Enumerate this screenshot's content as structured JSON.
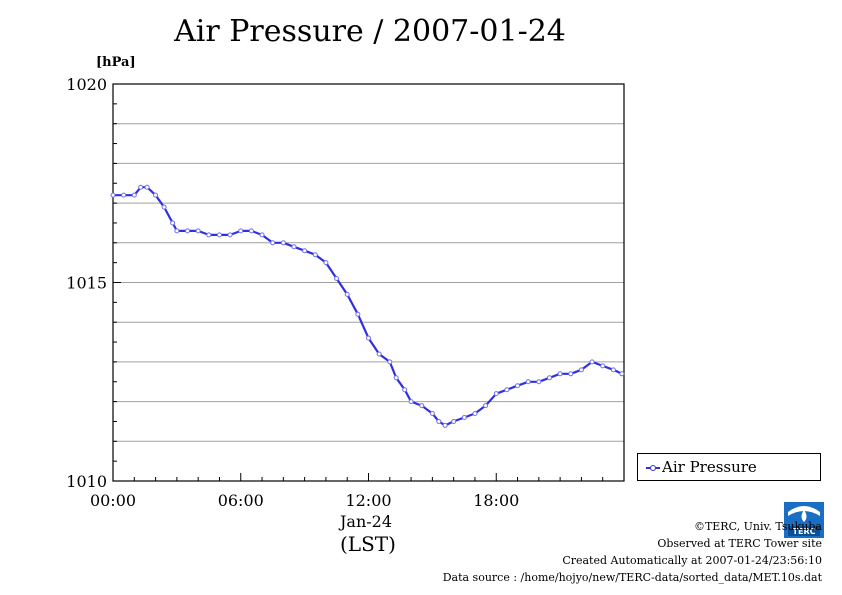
{
  "chart_data": {
    "type": "line",
    "title": "Air Pressure / 2007-01-24",
    "ylabel": "[hPa]",
    "xlabel": "Jan-24",
    "xlabel2": "(LST)",
    "ylim": [
      1010,
      1020
    ],
    "xlim": [
      0,
      24
    ],
    "y_ticks": [
      "1010",
      "1015",
      "1020"
    ],
    "x_ticks": [
      "00:00",
      "06:00",
      "12:00",
      "18:00"
    ],
    "grid": true,
    "legend_position": "right",
    "series": [
      {
        "name": "Air Pressure",
        "color": "#3030e0",
        "x": [
          0,
          0.5,
          1,
          1.3,
          1.6,
          2,
          2.4,
          2.8,
          3,
          3.5,
          4,
          4.5,
          5,
          5.5,
          6,
          6.5,
          7,
          7.5,
          8,
          8.5,
          9,
          9.5,
          10,
          10.5,
          11,
          11.5,
          12,
          12.5,
          13,
          13.3,
          13.7,
          14,
          14.5,
          15,
          15.3,
          15.6,
          16,
          16.5,
          17,
          17.5,
          18,
          18.5,
          19,
          19.5,
          20,
          20.5,
          21,
          21.5,
          22,
          22.5,
          23,
          23.5,
          23.9
        ],
        "y": [
          1017.2,
          1017.2,
          1017.2,
          1017.4,
          1017.4,
          1017.2,
          1016.9,
          1016.5,
          1016.3,
          1016.3,
          1016.3,
          1016.2,
          1016.2,
          1016.2,
          1016.3,
          1016.3,
          1016.2,
          1016.0,
          1016.0,
          1015.9,
          1015.8,
          1015.7,
          1015.5,
          1015.1,
          1014.7,
          1014.2,
          1013.6,
          1013.2,
          1013.0,
          1012.6,
          1012.3,
          1012.0,
          1011.9,
          1011.7,
          1011.5,
          1011.4,
          1011.5,
          1011.6,
          1011.7,
          1011.9,
          1012.2,
          1012.3,
          1012.4,
          1012.5,
          1012.5,
          1012.6,
          1012.7,
          1012.7,
          1012.8,
          1013.0,
          1012.9,
          1012.8,
          1012.7
        ]
      }
    ]
  },
  "credits": {
    "line1": "©TERC, Univ. Tsukuba",
    "line2": "Observed at TERC Tower site",
    "line3": "Created Automatically at 2007-01-24/23:56:10",
    "line4": "Data source : /home/hojyo/new/TERC-data/sorted_data/MET.10s.dat",
    "logo_text": "TERC"
  }
}
